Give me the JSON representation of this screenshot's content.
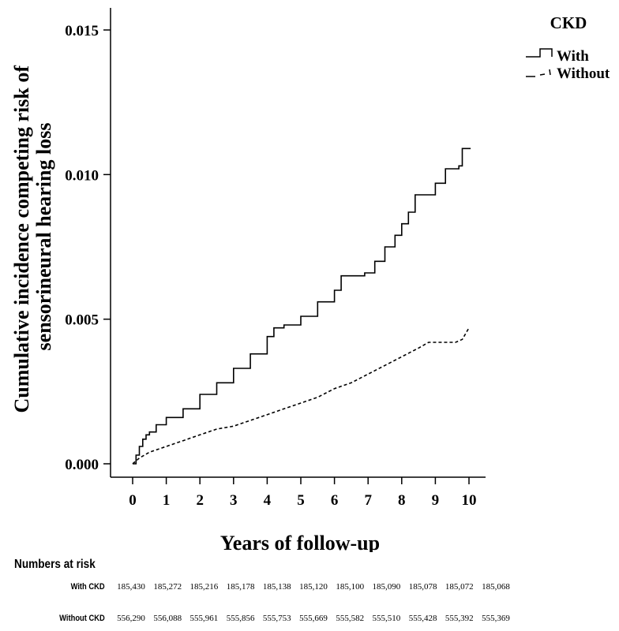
{
  "chart_data": {
    "type": "line",
    "ylabel_lines": [
      "Cumulative incidence competing risk of",
      "sensorineural hearing loss"
    ],
    "xlabel": "Years of follow-up",
    "xlim": [
      0,
      10
    ],
    "ylim": [
      0,
      0.016
    ],
    "x_ticks": [
      "0",
      "1",
      "2",
      "3",
      "4",
      "5",
      "6",
      "7",
      "8",
      "9",
      "10"
    ],
    "y_ticks": [
      "0.000",
      "0.005",
      "0.010",
      "0.015"
    ],
    "grid": false,
    "legend": {
      "title": "CKD",
      "position": "top-right",
      "entries": [
        "With",
        "Without"
      ]
    },
    "series": [
      {
        "name": "With",
        "style": "solid-step",
        "color": "#000000",
        "points": [
          [
            0.0,
            0.0
          ],
          [
            0.1,
            0.0003
          ],
          [
            0.2,
            0.0006
          ],
          [
            0.3,
            0.00085
          ],
          [
            0.4,
            0.001
          ],
          [
            0.5,
            0.0011
          ],
          [
            0.7,
            0.00135
          ],
          [
            1.0,
            0.0016
          ],
          [
            1.5,
            0.0019
          ],
          [
            2.0,
            0.0024
          ],
          [
            2.5,
            0.0028
          ],
          [
            3.0,
            0.0033
          ],
          [
            3.5,
            0.0038
          ],
          [
            4.0,
            0.0044
          ],
          [
            4.2,
            0.0047
          ],
          [
            4.5,
            0.0048
          ],
          [
            5.0,
            0.0051
          ],
          [
            5.5,
            0.0056
          ],
          [
            6.0,
            0.006
          ],
          [
            6.2,
            0.0065
          ],
          [
            6.9,
            0.0066
          ],
          [
            7.2,
            0.007
          ],
          [
            7.5,
            0.0075
          ],
          [
            7.8,
            0.0079
          ],
          [
            8.0,
            0.0083
          ],
          [
            8.2,
            0.0087
          ],
          [
            8.4,
            0.0093
          ],
          [
            8.8,
            0.0093
          ],
          [
            9.0,
            0.0097
          ],
          [
            9.3,
            0.0102
          ],
          [
            9.7,
            0.0103
          ],
          [
            9.8,
            0.0109
          ],
          [
            10.05,
            0.0109
          ]
        ]
      },
      {
        "name": "Without",
        "style": "dashed",
        "color": "#000000",
        "points": [
          [
            0.0,
            0.0
          ],
          [
            0.2,
            0.0002
          ],
          [
            0.5,
            0.0004
          ],
          [
            1.0,
            0.0006
          ],
          [
            1.5,
            0.0008
          ],
          [
            2.0,
            0.001
          ],
          [
            2.5,
            0.0012
          ],
          [
            3.0,
            0.0013
          ],
          [
            3.5,
            0.0015
          ],
          [
            4.0,
            0.0017
          ],
          [
            4.5,
            0.0019
          ],
          [
            5.0,
            0.0021
          ],
          [
            5.5,
            0.0023
          ],
          [
            6.0,
            0.0026
          ],
          [
            6.5,
            0.0028
          ],
          [
            7.0,
            0.0031
          ],
          [
            7.5,
            0.0034
          ],
          [
            8.0,
            0.0037
          ],
          [
            8.5,
            0.004
          ],
          [
            8.8,
            0.0042
          ],
          [
            9.2,
            0.0042
          ],
          [
            9.6,
            0.0042
          ],
          [
            9.8,
            0.0043
          ],
          [
            10.0,
            0.0047
          ]
        ]
      }
    ]
  },
  "risk_table": {
    "title": "Numbers at risk",
    "rows": [
      {
        "label": "With CKD",
        "values": [
          "185,430",
          "185,272",
          "185,216",
          "185,178",
          "185,138",
          "185,120",
          "185,100",
          "185,090",
          "185,078",
          "185,072",
          "185,068"
        ]
      },
      {
        "label": "Without CKD",
        "values": [
          "556,290",
          "556,088",
          "555,961",
          "555,856",
          "555,753",
          "555,669",
          "555,582",
          "555,510",
          "555,428",
          "555,392",
          "555,369"
        ]
      }
    ]
  }
}
